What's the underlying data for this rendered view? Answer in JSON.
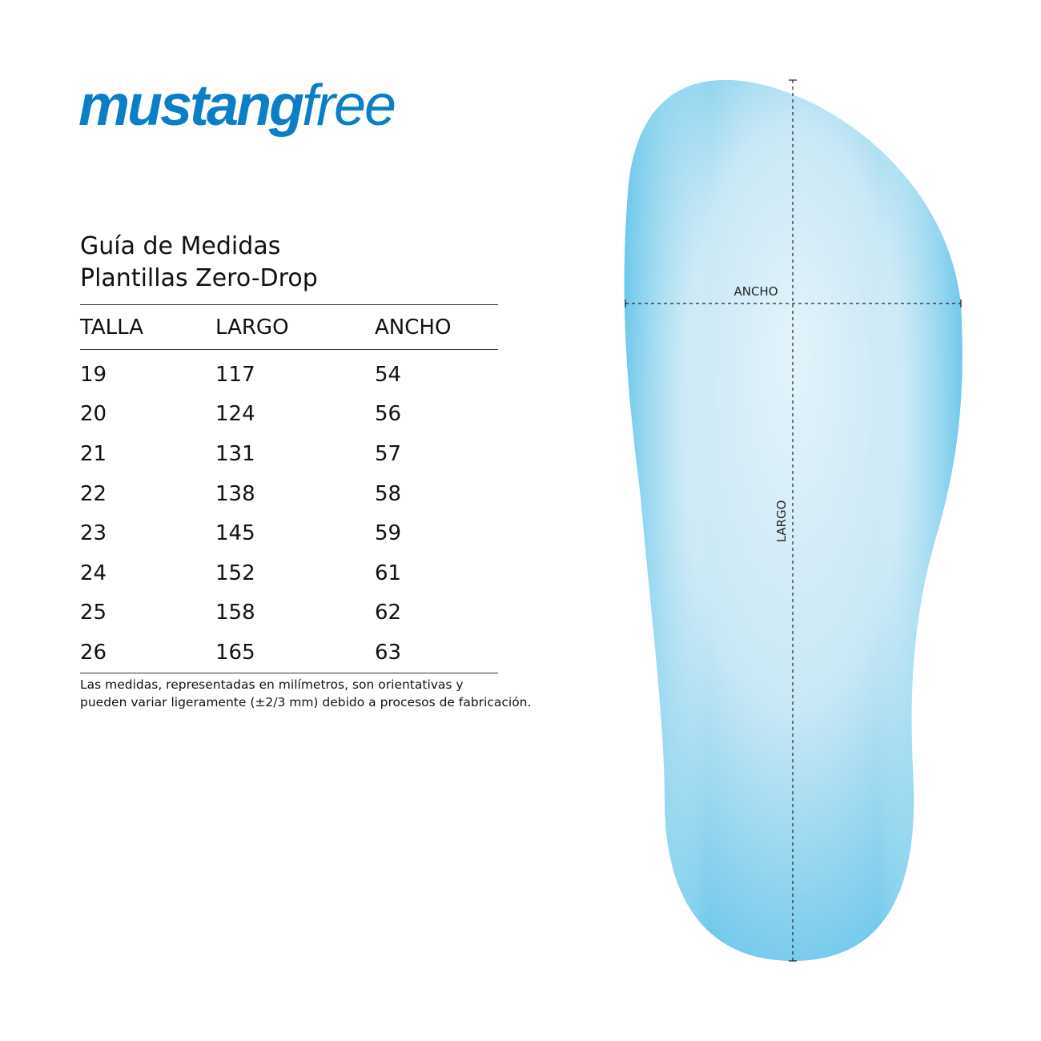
{
  "logo": {
    "bold": "mustang",
    "light": "free",
    "color": "#0a7fc6"
  },
  "title": {
    "line1": "Guía de Medidas",
    "line2": "Plantillas Zero-Drop"
  },
  "table": {
    "headers": [
      "TALLA",
      "LARGO",
      "ANCHO"
    ],
    "rows": [
      [
        "19",
        "117",
        "54"
      ],
      [
        "20",
        "124",
        "56"
      ],
      [
        "21",
        "131",
        "57"
      ],
      [
        "22",
        "138",
        "58"
      ],
      [
        "23",
        "145",
        "59"
      ],
      [
        "24",
        "152",
        "61"
      ],
      [
        "25",
        "158",
        "62"
      ],
      [
        "26",
        "165",
        "63"
      ]
    ]
  },
  "note": {
    "line1": "Las medidas, representadas en milímetros, son orientativas y",
    "line2": "pueden variar ligeramente (±2/3 mm) debido a procesos de fabricación."
  },
  "diagram": {
    "width_label": "ANCHO",
    "length_label": "LARGO",
    "insole_color": "#6cc7ea"
  }
}
